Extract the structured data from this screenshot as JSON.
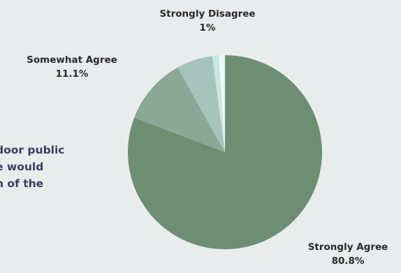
{
  "question_lines": [
    "door public",
    "e would",
    "n of the"
  ],
  "colors": {
    "background": "#e9ecec",
    "question_text": "#3d3b68",
    "label_text": "#2a2a2a"
  },
  "chart_data": {
    "type": "pie",
    "title": "",
    "slices": [
      {
        "label": "Strongly Agree",
        "value": 80.8,
        "value_label": "80.8%",
        "color": "#6e8e74"
      },
      {
        "label": "Somewhat Agree",
        "value": 11.1,
        "value_label": "11.1%",
        "color": "#89a896"
      },
      {
        "label": "",
        "value": 6.0,
        "value_label": "",
        "color": "#a6c4bb"
      },
      {
        "label": "",
        "value": 1.1,
        "value_label": "",
        "color": "#c9e6e2"
      },
      {
        "label": "Strongly Disagree",
        "value": 1.0,
        "value_label": "1%",
        "color": "#eafaf9"
      }
    ],
    "start": "top",
    "direction": "clockwise"
  }
}
